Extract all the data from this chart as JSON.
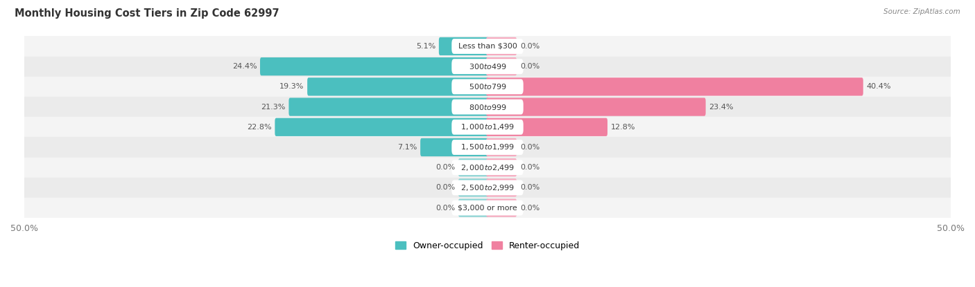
{
  "title": "Monthly Housing Cost Tiers in Zip Code 62997",
  "source": "Source: ZipAtlas.com",
  "categories": [
    "Less than $300",
    "$300 to $499",
    "$500 to $799",
    "$800 to $999",
    "$1,000 to $1,499",
    "$1,500 to $1,999",
    "$2,000 to $2,499",
    "$2,500 to $2,999",
    "$3,000 or more"
  ],
  "owner_values": [
    5.1,
    24.4,
    19.3,
    21.3,
    22.8,
    7.1,
    0.0,
    0.0,
    0.0
  ],
  "renter_values": [
    0.0,
    0.0,
    40.4,
    23.4,
    12.8,
    0.0,
    0.0,
    0.0,
    0.0
  ],
  "owner_color": "#4BBFBF",
  "renter_color": "#F080A0",
  "stub_owner_color": "#8DD4D4",
  "stub_renter_color": "#F5AABF",
  "row_colors": [
    "#F4F4F4",
    "#EBEBEB"
  ],
  "label_color": "#555555",
  "axis_label_left": "50.0%",
  "axis_label_right": "50.0%",
  "max_value": 50.0,
  "stub_size": 3.0,
  "legend_owner": "Owner-occupied",
  "legend_renter": "Renter-occupied",
  "title_fontsize": 10.5,
  "label_fontsize": 8.0,
  "category_fontsize": 8.0
}
